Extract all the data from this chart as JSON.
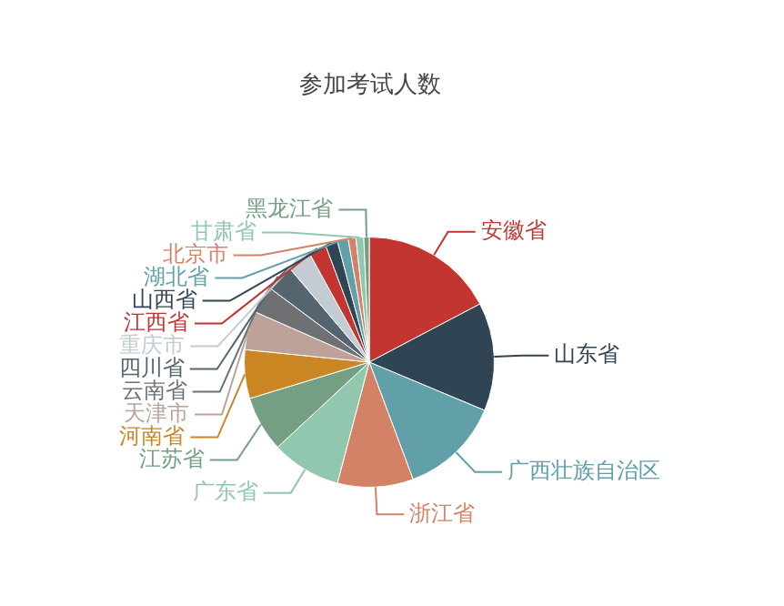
{
  "chart_data": {
    "type": "pie",
    "title": "参加考试人数",
    "categories": [
      "安徽省",
      "山东省",
      "广西壮族自治区",
      "浙江省",
      "广东省",
      "江苏省",
      "河南省",
      "天津市",
      "云南省",
      "四川省",
      "重庆市",
      "江西省",
      "山西省",
      "湖北省",
      "北京市",
      "甘肃省",
      "黑龙江省"
    ],
    "values": [
      17.3,
      14.0,
      13.0,
      9.8,
      9.0,
      7.2,
      6.3,
      5.0,
      3.6,
      3.6,
      3.2,
      2.3,
      1.6,
      1.4,
      1.0,
      1.0,
      0.7
    ],
    "colors": [
      "#c23531",
      "#2f4554",
      "#61a0a8",
      "#d48265",
      "#91c7ae",
      "#749f83",
      "#ca8622",
      "#bda29a",
      "#6e7074",
      "#546570",
      "#c4ccd3",
      "#c23531",
      "#2f4554",
      "#61a0a8",
      "#d48265",
      "#91c7ae",
      "#749f83"
    ],
    "legend": false
  }
}
